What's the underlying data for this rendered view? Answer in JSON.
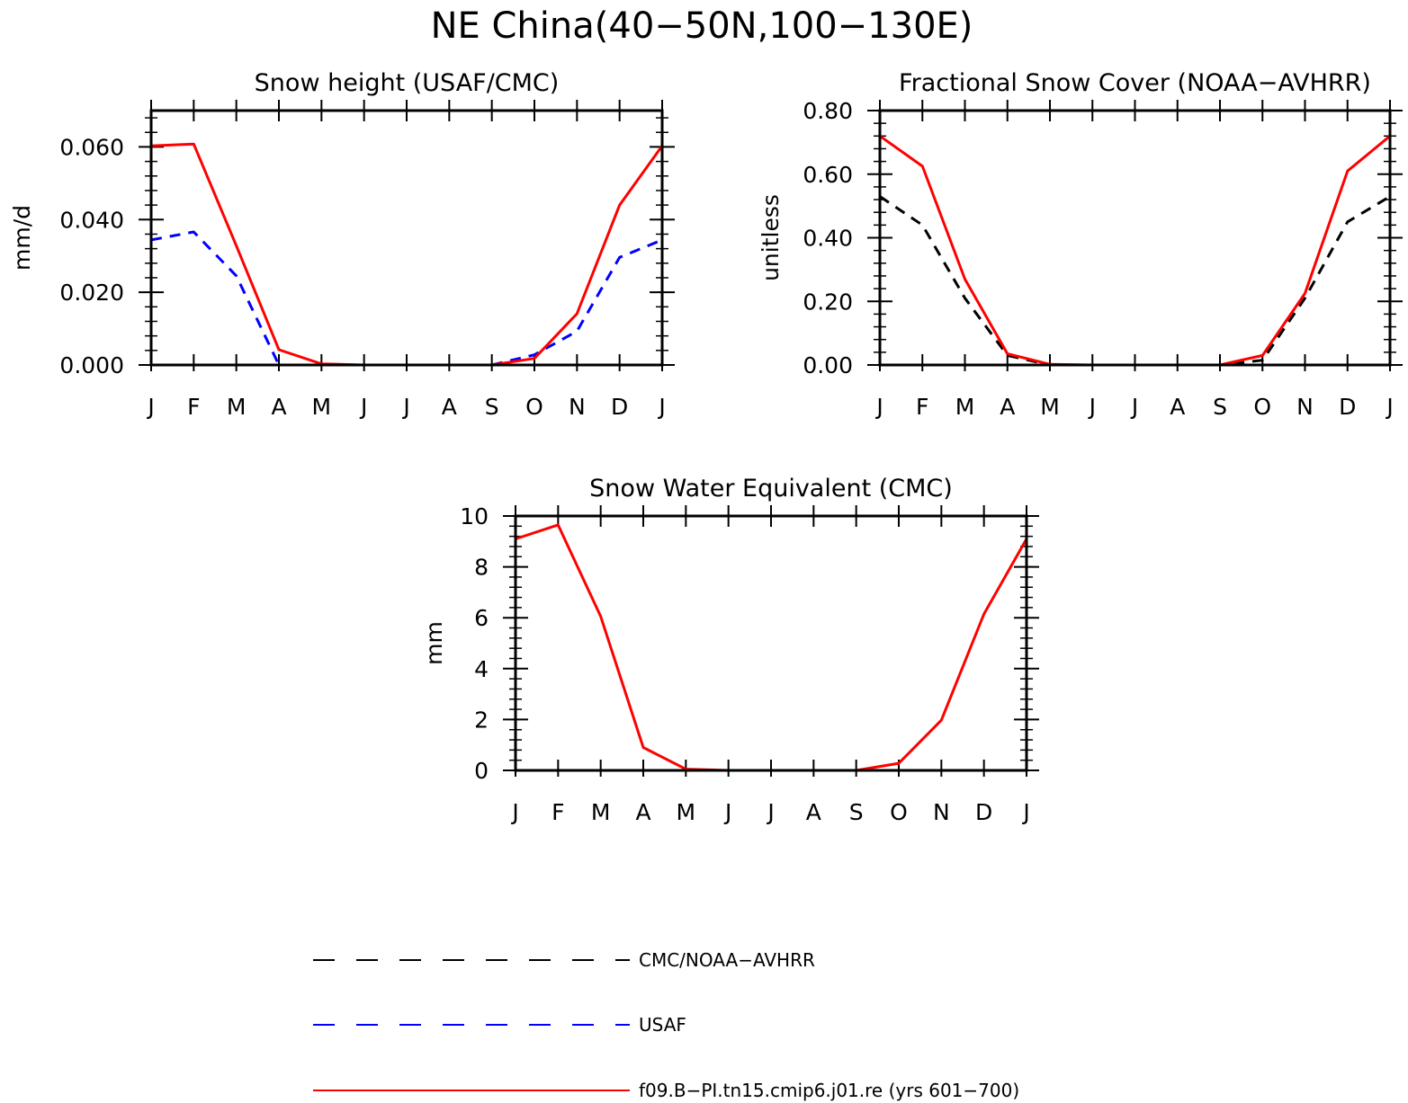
{
  "figure": {
    "title": "NE China(40−50N,100−130E)"
  },
  "chart_data": [
    {
      "type": "line",
      "title": "Snow height (USAF/CMC)",
      "xlabel": "",
      "ylabel": "mm/d",
      "categories": [
        "J",
        "F",
        "M",
        "A",
        "M",
        "J",
        "J",
        "A",
        "S",
        "O",
        "N",
        "D",
        "J"
      ],
      "ylim": [
        0,
        0.07
      ],
      "yticks": [
        0.0,
        0.02,
        0.04,
        0.06
      ],
      "ytick_labels": [
        "0.000",
        "0.020",
        "0.040",
        "0.060"
      ],
      "grid": false,
      "series": [
        {
          "name": "CMC/NOAA−AVHRR",
          "color": "#000000",
          "dash": "dashed",
          "values": [
            0,
            0,
            0,
            0,
            0,
            0,
            0,
            0,
            0,
            0,
            0,
            0,
            0
          ]
        },
        {
          "name": "USAF",
          "color": "#0000ff",
          "dash": "dashed",
          "values": [
            0.0344,
            0.0366,
            0.0245,
            0.0,
            null,
            null,
            null,
            null,
            0.0,
            0.0028,
            0.0093,
            0.0296,
            0.0344
          ]
        },
        {
          "name": "f09.B−PI.tn15.cmip6.j01.re (yrs 601−700)",
          "color": "#ff0000",
          "dash": "solid",
          "values": [
            0.0603,
            0.0608,
            0.0328,
            0.0042,
            0.0003,
            0.0,
            0.0,
            0.0,
            0.0,
            0.0018,
            0.0141,
            0.044,
            0.0603
          ]
        }
      ]
    },
    {
      "type": "line",
      "title": "Fractional Snow Cover (NOAA−AVHRR)",
      "xlabel": "",
      "ylabel": "unitless",
      "categories": [
        "J",
        "F",
        "M",
        "A",
        "M",
        "J",
        "J",
        "A",
        "S",
        "O",
        "N",
        "D",
        "J"
      ],
      "ylim": [
        0,
        0.8
      ],
      "yticks": [
        0.0,
        0.2,
        0.4,
        0.6,
        0.8
      ],
      "ytick_labels": [
        "0.00",
        "0.20",
        "0.40",
        "0.60",
        "0.80"
      ],
      "grid": false,
      "series": [
        {
          "name": "CMC/NOAA−AVHRR",
          "color": "#000000",
          "dash": "dashed",
          "values": [
            0.53,
            0.44,
            0.21,
            0.03,
            0.0,
            0.0,
            0.0,
            0.0,
            0.0,
            0.015,
            0.21,
            0.45,
            0.53
          ]
        },
        {
          "name": "f09.B−PI.tn15.cmip6.j01.re (yrs 601−700)",
          "color": "#ff0000",
          "dash": "solid",
          "values": [
            0.72,
            0.625,
            0.27,
            0.035,
            0.002,
            0.0,
            0.0,
            0.0,
            0.0,
            0.03,
            0.225,
            0.61,
            0.72
          ]
        }
      ]
    },
    {
      "type": "line",
      "title": "Snow Water Equivalent (CMC)",
      "xlabel": "",
      "ylabel": "mm",
      "categories": [
        "J",
        "F",
        "M",
        "A",
        "M",
        "J",
        "J",
        "A",
        "S",
        "O",
        "N",
        "D",
        "J"
      ],
      "ylim": [
        0,
        10
      ],
      "yticks": [
        0,
        2,
        4,
        6,
        8,
        10
      ],
      "ytick_labels": [
        "0",
        "2",
        "4",
        "6",
        "8",
        "10"
      ],
      "grid": false,
      "series": [
        {
          "name": "CMC/NOAA−AVHRR",
          "color": "#000000",
          "dash": "dashed",
          "values": [
            0,
            0,
            0,
            0,
            0,
            0,
            0,
            0,
            0,
            0,
            0,
            0,
            0
          ]
        },
        {
          "name": "f09.B−PI.tn15.cmip6.j01.re (yrs 601−700)",
          "color": "#ff0000",
          "dash": "solid",
          "values": [
            9.1,
            9.65,
            6.05,
            0.9,
            0.05,
            0.0,
            0.0,
            0.0,
            0.0,
            0.28,
            1.97,
            6.15,
            9.1
          ]
        }
      ]
    }
  ],
  "legend": {
    "placement": "bottom",
    "entries": [
      {
        "label": "CMC/NOAA−AVHRR",
        "color": "#000000",
        "dash": "dashed"
      },
      {
        "label": "USAF",
        "color": "#0000ff",
        "dash": "dashed"
      },
      {
        "label": "f09.B−PI.tn15.cmip6.j01.re (yrs 601−700)",
        "color": "#ff0000",
        "dash": "solid"
      }
    ]
  }
}
